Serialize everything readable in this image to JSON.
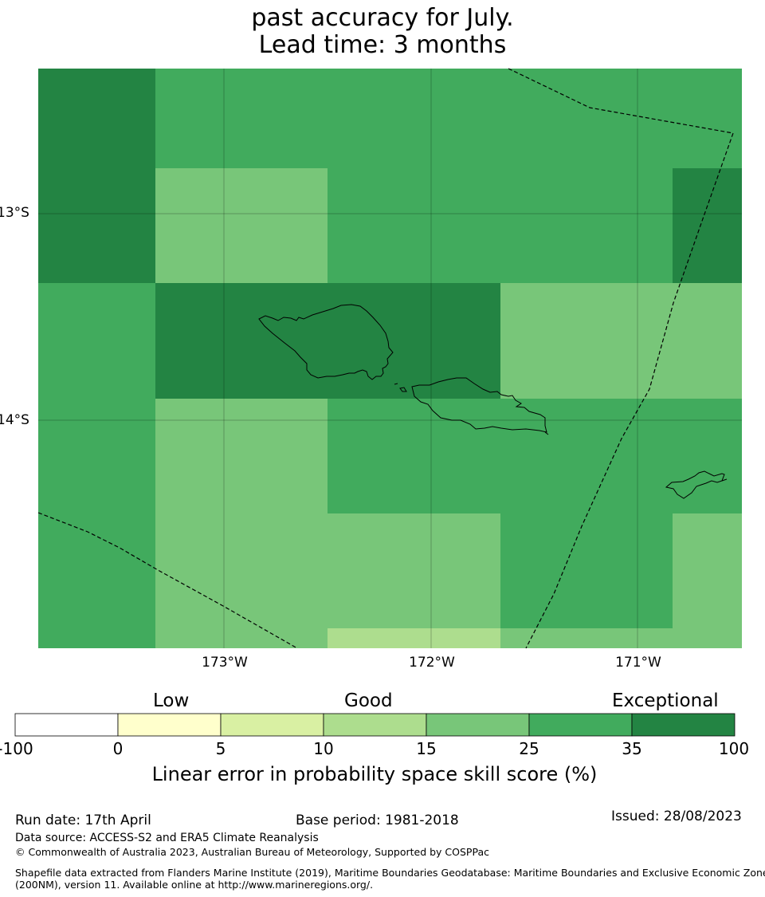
{
  "title": {
    "line1": "past accuracy for July.",
    "line2": "Lead time: 3 months"
  },
  "map": {
    "lat_labels": [
      "13°S",
      "14°S"
    ],
    "lon_labels": [
      "173°W",
      "172°W",
      "171°W"
    ],
    "colors": {
      "c0_5": "#ffffcc",
      "c5_10": "#d9f0a3",
      "c10_15": "#addd8e",
      "c15_25": "#78c679",
      "c25_35": "#41ab5d",
      "c35_100": "#238443"
    }
  },
  "colorbar": {
    "category_labels": [
      "Low",
      "Good",
      "Exceptional"
    ],
    "ticks": [
      "-100",
      "0",
      "5",
      "10",
      "15",
      "25",
      "35",
      "100"
    ],
    "swatches": [
      "#ffffff",
      "#ffffcc",
      "#d9f0a3",
      "#addd8e",
      "#78c679",
      "#41ab5d",
      "#238443"
    ],
    "title": "Linear error in probability space skill score (%)"
  },
  "footer": {
    "run_date": "Run date: 17th April",
    "base_period": "Base period: 1981-2018",
    "issued": "Issued: 28/08/2023",
    "data_source": "Data source: ACCESS-S2 and ERA5 Climate Reanalysis",
    "copyright": "© Commonwealth of Australia 2023, Australian Bureau of Meteorology, Supported by COSPPac",
    "shapefile_line1": "Shapefile data extracted from Flanders Marine Institute (2019), Maritime Boundaries Geodatabase: Maritime Boundaries and Exclusive Economic Zones",
    "shapefile_line2": "(200NM), version 11. Available online at http://www.marineregions.org/."
  }
}
